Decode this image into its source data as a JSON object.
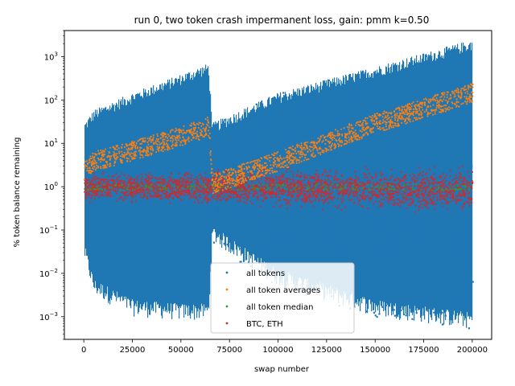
{
  "chart_data": {
    "type": "scatter",
    "title": "run 0, two token crash impermanent loss, gain: pmm k=0.50",
    "xlabel": "swap number",
    "ylabel": "% token balance remaining",
    "xlim": [
      -10000,
      210000
    ],
    "ylim": [
      0.0003,
      4000
    ],
    "yscale": "log",
    "x_ticks": [
      0,
      25000,
      50000,
      75000,
      100000,
      125000,
      150000,
      175000,
      200000
    ],
    "x_tick_labels": [
      "0",
      "25000",
      "50000",
      "75000",
      "100000",
      "125000",
      "150000",
      "175000",
      "200000"
    ],
    "y_ticks": [
      0.001,
      0.01,
      0.1,
      1,
      10,
      100,
      1000
    ],
    "y_tick_bases": [
      "10",
      "10",
      "10",
      "10",
      "10",
      "10",
      "10"
    ],
    "y_tick_exponents": [
      "−3",
      "−2",
      "−1",
      "0",
      "1",
      "2",
      "3"
    ],
    "grid": false,
    "legend_position": "lower-center",
    "series": [
      {
        "name": "all tokens",
        "color": "#1f77b4",
        "x": [
          0,
          5000,
          25000,
          50000,
          64000,
          66000,
          100000,
          150000,
          200000
        ],
        "y_upper": [
          30,
          60,
          150,
          400,
          700,
          30,
          150,
          600,
          2500
        ],
        "y_lower": [
          0.02,
          0.003,
          0.001,
          0.0008,
          0.0008,
          0.05,
          0.005,
          0.001,
          0.0005
        ]
      },
      {
        "name": "all token averages",
        "color": "#ff7f0e",
        "x": [
          0,
          5000,
          25000,
          50000,
          64000,
          66000,
          100000,
          150000,
          200000
        ],
        "y": [
          2.5,
          4,
          7,
          15,
          25,
          1.2,
          4,
          30,
          150
        ]
      },
      {
        "name": "all token median",
        "color": "#2ca02c",
        "x": [
          0,
          200000
        ],
        "y": [
          1,
          1
        ]
      },
      {
        "name": "BTC, ETH",
        "color": "#d62728",
        "x": [
          0,
          200000
        ],
        "y_upper": [
          2.5,
          4
        ],
        "y_lower": [
          0.4,
          0.2
        ]
      }
    ]
  }
}
